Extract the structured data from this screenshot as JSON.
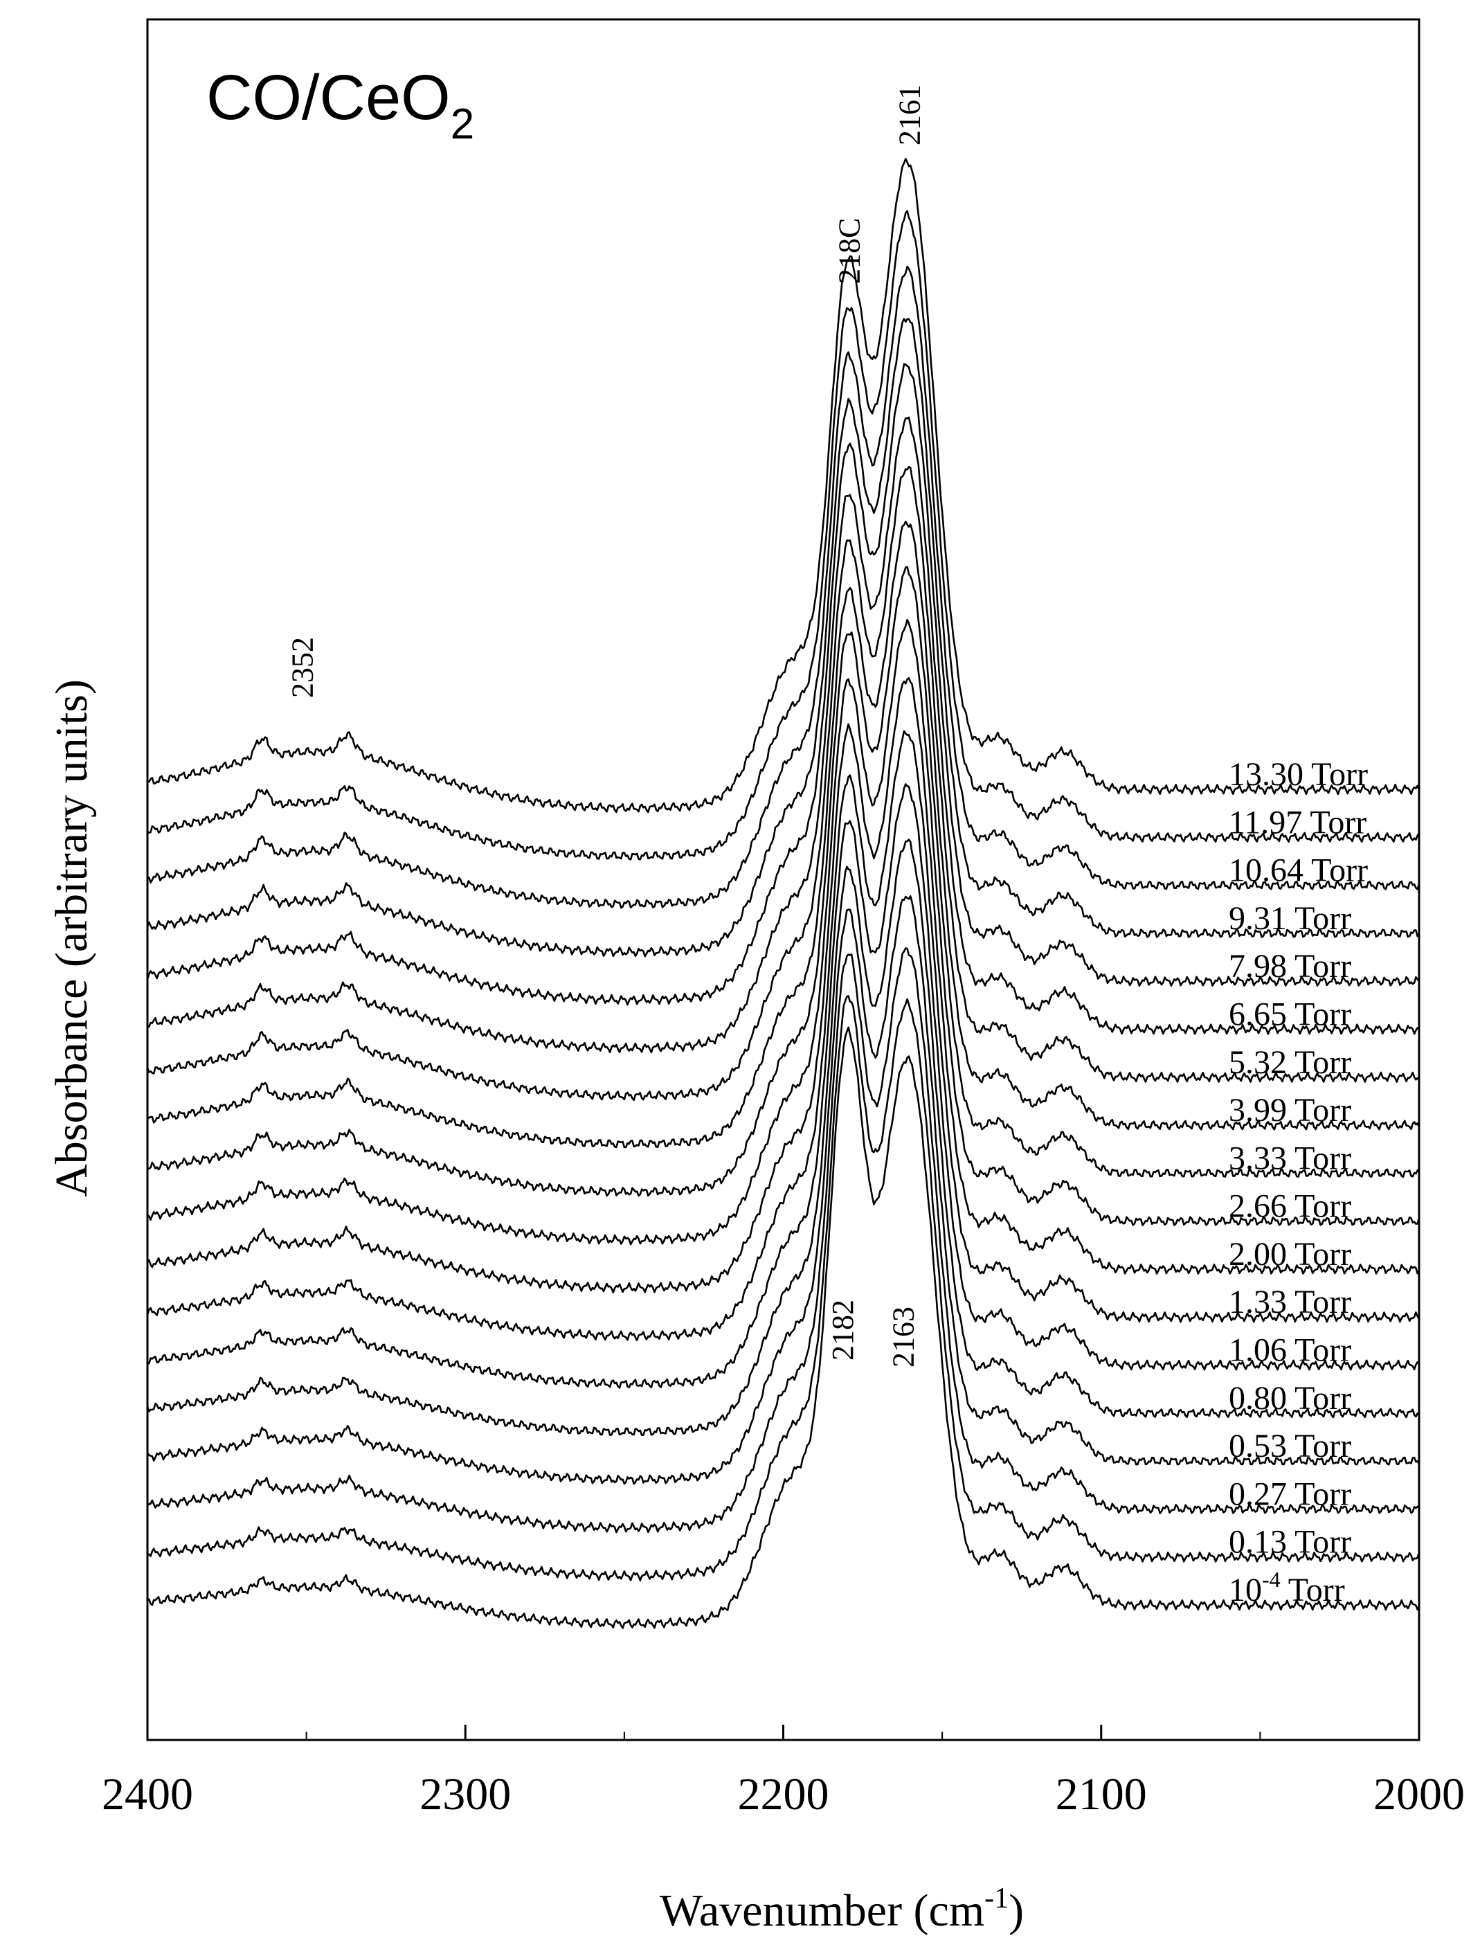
{
  "chart_data": {
    "type": "line",
    "title": "CO/CeO₂",
    "title_parts": {
      "main": "CO/CeO",
      "subscript": "2"
    },
    "xlabel": "Wavenumber (cm⁻¹)",
    "xlabel_parts": {
      "main": "Wavenumber  (cm",
      "superscript": "-1",
      "close": ")"
    },
    "ylabel": "Absorbance  (arbitrary units)",
    "xlim": [
      2400,
      2000
    ],
    "x_reversed": true,
    "xticks": [
      "2400",
      "2300",
      "2200",
      "2100",
      "2000"
    ],
    "xtick_values": [
      2400,
      2300,
      2200,
      2100,
      2000
    ],
    "y_ticks_shown": false,
    "grid": false,
    "legend": "series labels printed at right end of each trace",
    "series": [
      {
        "name": "13.30 Torr",
        "label": "13.30 Torr",
        "pressure_torr": 13.3,
        "baseline": 0.0,
        "peak_2161": 1.0,
        "peak_2180": 0.7,
        "band_2352": 0.06
      },
      {
        "name": "11.97 Torr",
        "label": "11.97 Torr",
        "pressure_torr": 11.97,
        "baseline": 0.0,
        "peak_2161": 0.99,
        "peak_2180": 0.7,
        "band_2352": 0.056
      },
      {
        "name": "10.64 Torr",
        "label": "10.64 Torr",
        "pressure_torr": 10.64,
        "baseline": 0.0,
        "peak_2161": 0.98,
        "peak_2180": 0.7,
        "band_2352": 0.055
      },
      {
        "name": "9.31 Torr",
        "label": "9.31 Torr",
        "pressure_torr": 9.31,
        "baseline": 0.0,
        "peak_2161": 0.98,
        "peak_2180": 0.7,
        "band_2352": 0.052
      },
      {
        "name": "7.98 Torr",
        "label": "7.98 Torr",
        "pressure_torr": 7.98,
        "baseline": 0.0,
        "peak_2161": 0.98,
        "peak_2180": 0.71,
        "band_2352": 0.052
      },
      {
        "name": "6.65 Torr",
        "label": "6.65 Torr",
        "pressure_torr": 6.65,
        "baseline": 0.0,
        "peak_2161": 0.97,
        "peak_2180": 0.71,
        "band_2352": 0.05
      },
      {
        "name": "5.32 Torr",
        "label": "5.32 Torr",
        "pressure_torr": 5.32,
        "baseline": 0.0,
        "peak_2161": 0.97,
        "peak_2180": 0.71,
        "band_2352": 0.05
      },
      {
        "name": "3.99 Torr",
        "label": "3.99 Torr",
        "pressure_torr": 3.99,
        "baseline": 0.0,
        "peak_2161": 0.96,
        "peak_2180": 0.71,
        "band_2352": 0.048
      },
      {
        "name": "3.33 Torr",
        "label": "3.33 Torr",
        "pressure_torr": 3.33,
        "baseline": 0.0,
        "peak_2161": 0.96,
        "peak_2180": 0.72,
        "band_2352": 0.046
      },
      {
        "name": "2.66 Torr",
        "label": "2.66 Torr",
        "pressure_torr": 2.66,
        "baseline": 0.0,
        "peak_2161": 0.95,
        "peak_2180": 0.72,
        "band_2352": 0.045
      },
      {
        "name": "2.00 Torr",
        "label": "2.00 Torr",
        "pressure_torr": 2.0,
        "baseline": 0.0,
        "peak_2161": 0.94,
        "peak_2180": 0.72,
        "band_2352": 0.043
      },
      {
        "name": "1.33 Torr",
        "label": "1.33 Torr",
        "pressure_torr": 1.33,
        "baseline": 0.0,
        "peak_2161": 0.93,
        "peak_2180": 0.72,
        "band_2352": 0.04
      },
      {
        "name": "1.06 Torr",
        "label": "1.06 Torr",
        "pressure_torr": 1.06,
        "baseline": 0.0,
        "peak_2161": 0.92,
        "peak_2180": 0.73,
        "band_2352": 0.04
      },
      {
        "name": "0.80 Torr",
        "label": "0.80 Torr",
        "pressure_torr": 0.8,
        "baseline": 0.0,
        "peak_2161": 0.91,
        "peak_2180": 0.73,
        "band_2352": 0.038
      },
      {
        "name": "0.53 Torr",
        "label": "0.53 Torr",
        "pressure_torr": 0.53,
        "baseline": 0.0,
        "peak_2161": 0.9,
        "peak_2180": 0.74,
        "band_2352": 0.036
      },
      {
        "name": "0.27 Torr",
        "label": "0.27 Torr",
        "pressure_torr": 0.27,
        "baseline": 0.0,
        "peak_2161": 0.89,
        "peak_2180": 0.75,
        "band_2352": 0.034
      },
      {
        "name": "0.13 Torr",
        "label": "0.13 Torr",
        "pressure_torr": 0.13,
        "baseline": 0.0,
        "peak_2161": 0.88,
        "peak_2180": 0.76,
        "band_2352": 0.032
      },
      {
        "name": "10-4 Torr",
        "label_parts": {
          "main": "10",
          "superscript": "-4",
          "unit": " Torr"
        },
        "pressure_torr": 0.0001,
        "baseline": 0.0,
        "peak_2161": 0.87,
        "peak_2180": 0.78,
        "band_2352": 0.03
      }
    ],
    "annotations": [
      {
        "text": "2161",
        "x": 2161,
        "near": "top trace"
      },
      {
        "text": "218C",
        "x": 2180,
        "near": "top trace"
      },
      {
        "text": "2352",
        "x": 2352,
        "near": "top trace"
      },
      {
        "text": "2182",
        "x": 2182,
        "near": "bottom trace"
      },
      {
        "text": "2163",
        "x": 2163,
        "near": "bottom trace"
      }
    ]
  }
}
